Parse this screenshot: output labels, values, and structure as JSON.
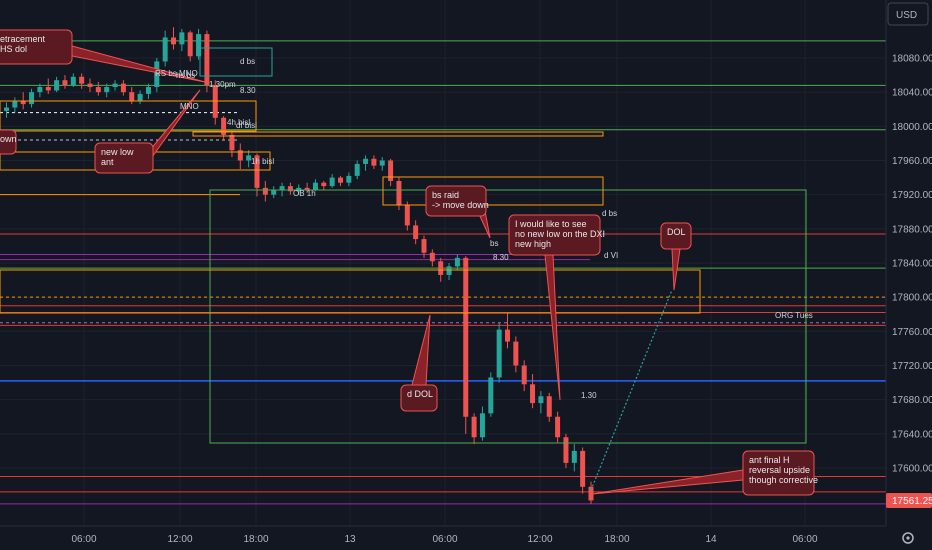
{
  "chart_data": {
    "type": "candlestick",
    "currency": "USD",
    "last_price": "17561.25",
    "colors": {
      "background": "#131722",
      "up": "#26a69a",
      "down": "#ef5350",
      "grid": "#1e222d"
    },
    "y_ticks": [
      "18080.00",
      "18040.00",
      "18000.00",
      "17960.00",
      "17920.00",
      "17880.00",
      "17840.00",
      "17800.00",
      "17760.00",
      "17720.00",
      "17680.00",
      "17640.00",
      "17600.00"
    ],
    "x_ticks": [
      "06:00",
      "12:00",
      "18:00",
      "13",
      "06:00",
      "12:00",
      "18:00",
      "14",
      "06:00"
    ],
    "ylim": [
      17525,
      18140
    ],
    "candles": [
      {
        "o": 18018,
        "h": 18028,
        "l": 18010,
        "c": 18022
      },
      {
        "o": 18022,
        "h": 18034,
        "l": 18016,
        "c": 18030
      },
      {
        "o": 18030,
        "h": 18040,
        "l": 18020,
        "c": 18026
      },
      {
        "o": 18026,
        "h": 18044,
        "l": 18022,
        "c": 18040
      },
      {
        "o": 18040,
        "h": 18050,
        "l": 18034,
        "c": 18046
      },
      {
        "o": 18046,
        "h": 18056,
        "l": 18038,
        "c": 18042
      },
      {
        "o": 18042,
        "h": 18058,
        "l": 18040,
        "c": 18054
      },
      {
        "o": 18054,
        "h": 18060,
        "l": 18044,
        "c": 18048
      },
      {
        "o": 18048,
        "h": 18062,
        "l": 18046,
        "c": 18058
      },
      {
        "o": 18058,
        "h": 18062,
        "l": 18044,
        "c": 18050
      },
      {
        "o": 18050,
        "h": 18056,
        "l": 18040,
        "c": 18046
      },
      {
        "o": 18046,
        "h": 18052,
        "l": 18036,
        "c": 18040
      },
      {
        "o": 18040,
        "h": 18050,
        "l": 18034,
        "c": 18046
      },
      {
        "o": 18046,
        "h": 18054,
        "l": 18042,
        "c": 18050
      },
      {
        "o": 18050,
        "h": 18054,
        "l": 18036,
        "c": 18040
      },
      {
        "o": 18040,
        "h": 18046,
        "l": 18026,
        "c": 18030
      },
      {
        "o": 18030,
        "h": 18042,
        "l": 18026,
        "c": 18038
      },
      {
        "o": 18038,
        "h": 18050,
        "l": 18032,
        "c": 18046
      },
      {
        "o": 18046,
        "h": 18080,
        "l": 18040,
        "c": 18076
      },
      {
        "o": 18076,
        "h": 18112,
        "l": 18070,
        "c": 18104
      },
      {
        "o": 18104,
        "h": 18116,
        "l": 18090,
        "c": 18096
      },
      {
        "o": 18096,
        "h": 18114,
        "l": 18088,
        "c": 18110
      },
      {
        "o": 18110,
        "h": 18112,
        "l": 18076,
        "c": 18082
      },
      {
        "o": 18082,
        "h": 18114,
        "l": 18078,
        "c": 18108
      },
      {
        "o": 18108,
        "h": 18112,
        "l": 18040,
        "c": 18048
      },
      {
        "o": 18048,
        "h": 18054,
        "l": 18002,
        "c": 18010
      },
      {
        "o": 18010,
        "h": 18012,
        "l": 17984,
        "c": 17990
      },
      {
        "o": 17990,
        "h": 17996,
        "l": 17964,
        "c": 17972
      },
      {
        "o": 17972,
        "h": 17980,
        "l": 17950,
        "c": 17960
      },
      {
        "o": 17960,
        "h": 17972,
        "l": 17952,
        "c": 17966
      },
      {
        "o": 17966,
        "h": 17968,
        "l": 17918,
        "c": 17928
      },
      {
        "o": 17928,
        "h": 17936,
        "l": 17912,
        "c": 17920
      },
      {
        "o": 17920,
        "h": 17930,
        "l": 17916,
        "c": 17926
      },
      {
        "o": 17926,
        "h": 17934,
        "l": 17918,
        "c": 17930
      },
      {
        "o": 17930,
        "h": 17934,
        "l": 17920,
        "c": 17924
      },
      {
        "o": 17924,
        "h": 17932,
        "l": 17920,
        "c": 17928
      },
      {
        "o": 17928,
        "h": 17934,
        "l": 17922,
        "c": 17926
      },
      {
        "o": 17926,
        "h": 17938,
        "l": 17924,
        "c": 17934
      },
      {
        "o": 17934,
        "h": 17936,
        "l": 17926,
        "c": 17930
      },
      {
        "o": 17930,
        "h": 17944,
        "l": 17928,
        "c": 17940
      },
      {
        "o": 17940,
        "h": 17942,
        "l": 17930,
        "c": 17934
      },
      {
        "o": 17934,
        "h": 17946,
        "l": 17930,
        "c": 17942
      },
      {
        "o": 17942,
        "h": 17960,
        "l": 17938,
        "c": 17956
      },
      {
        "o": 17956,
        "h": 17966,
        "l": 17948,
        "c": 17962
      },
      {
        "o": 17962,
        "h": 17966,
        "l": 17950,
        "c": 17954
      },
      {
        "o": 17954,
        "h": 17964,
        "l": 17948,
        "c": 17960
      },
      {
        "o": 17960,
        "h": 17962,
        "l": 17930,
        "c": 17936
      },
      {
        "o": 17936,
        "h": 17940,
        "l": 17902,
        "c": 17908
      },
      {
        "o": 17908,
        "h": 17912,
        "l": 17878,
        "c": 17884
      },
      {
        "o": 17884,
        "h": 17890,
        "l": 17862,
        "c": 17868
      },
      {
        "o": 17868,
        "h": 17872,
        "l": 17846,
        "c": 17852
      },
      {
        "o": 17852,
        "h": 17856,
        "l": 17836,
        "c": 17842
      },
      {
        "o": 17842,
        "h": 17846,
        "l": 17818,
        "c": 17826
      },
      {
        "o": 17826,
        "h": 17840,
        "l": 17820,
        "c": 17836
      },
      {
        "o": 17836,
        "h": 17850,
        "l": 17832,
        "c": 17846
      },
      {
        "o": 17846,
        "h": 17848,
        "l": 17640,
        "c": 17660
      },
      {
        "o": 17660,
        "h": 17664,
        "l": 17628,
        "c": 17636
      },
      {
        "o": 17636,
        "h": 17672,
        "l": 17632,
        "c": 17664
      },
      {
        "o": 17664,
        "h": 17712,
        "l": 17660,
        "c": 17706
      },
      {
        "o": 17706,
        "h": 17770,
        "l": 17700,
        "c": 17762
      },
      {
        "o": 17762,
        "h": 17782,
        "l": 17740,
        "c": 17748
      },
      {
        "o": 17748,
        "h": 17754,
        "l": 17712,
        "c": 17720
      },
      {
        "o": 17720,
        "h": 17726,
        "l": 17690,
        "c": 17698
      },
      {
        "o": 17698,
        "h": 17710,
        "l": 17670,
        "c": 17676
      },
      {
        "o": 17676,
        "h": 17690,
        "l": 17664,
        "c": 17684
      },
      {
        "o": 17684,
        "h": 17688,
        "l": 17654,
        "c": 17660
      },
      {
        "o": 17660,
        "h": 17666,
        "l": 17630,
        "c": 17636
      },
      {
        "o": 17636,
        "h": 17640,
        "l": 17600,
        "c": 17606
      },
      {
        "o": 17606,
        "h": 17628,
        "l": 17596,
        "c": 17620
      },
      {
        "o": 17620,
        "h": 17624,
        "l": 17570,
        "c": 17578
      },
      {
        "o": 17578,
        "h": 17584,
        "l": 17558,
        "c": 17562
      }
    ],
    "annotations": {
      "retracement": [
        "etracement",
        "HS dol"
      ],
      "new_low": [
        "new low",
        "ant"
      ],
      "down": "own",
      "bs_raid": [
        "bs raid",
        "-> move down"
      ],
      "dxi": [
        "I would like to see",
        "no new low on the DXI",
        "new high"
      ],
      "dol": "DOL",
      "d_dol": "d DOL",
      "ant_final": [
        "ant final H",
        "reversal upside",
        "though corrective"
      ]
    },
    "level_labels": {
      "d_bs_top": "d bs",
      "rs_bs": "RS bs MNO",
      "hs_bs": "hs bs",
      "pm_130": "1.30pm",
      "lvl_830_top": "8.30",
      "mno": "MNO",
      "h4_bisl": "4h bisl",
      "df_bisl": "df bisl",
      "h1_bisl": "1h bisl",
      "ob_1h": "OB 1h",
      "d_bs_mid": "d bs",
      "bs": "bs",
      "lvl_830_mid": "8.30",
      "d_vi": "d VI",
      "org_tues": "ORG Tues",
      "lvl_130": "1.30"
    }
  }
}
